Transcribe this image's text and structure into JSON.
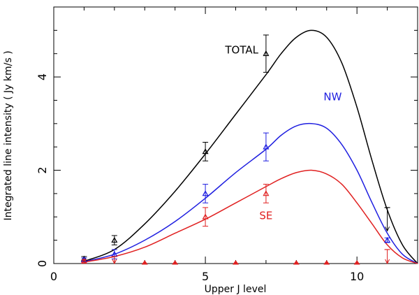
{
  "chart_data": {
    "type": "line",
    "title": "",
    "xlabel": "Upper J level",
    "ylabel": "Integrated line intensity ( Jy km/s )",
    "xlim": [
      0,
      12
    ],
    "ylim": [
      0,
      5.5
    ],
    "x_ticks": [
      0,
      5,
      10
    ],
    "y_ticks": [
      0,
      2,
      4
    ],
    "x_tick_labels": [
      "0",
      "5",
      "10"
    ],
    "y_tick_labels": [
      "0",
      "2",
      "4"
    ],
    "grid": false,
    "series": [
      {
        "name": "TOTAL",
        "color": "#000000",
        "curve": {
          "x": [
            1,
            2,
            3,
            4,
            5,
            6,
            7,
            7.5,
            8,
            8.5,
            9,
            9.5,
            10,
            10.5,
            11,
            11.5,
            12
          ],
          "y": [
            0.05,
            0.3,
            0.85,
            1.55,
            2.35,
            3.2,
            4.05,
            4.5,
            4.85,
            5.0,
            4.85,
            4.3,
            3.35,
            2.2,
            1.15,
            0.4,
            0.0
          ]
        },
        "points": [
          {
            "x": 1,
            "y": 0.1,
            "err": 0.05
          },
          {
            "x": 2,
            "y": 0.5,
            "err": 0.1
          },
          {
            "x": 5,
            "y": 2.4,
            "err": 0.2
          },
          {
            "x": 7,
            "y": 4.5,
            "err": 0.4
          }
        ],
        "upper_limits": [
          {
            "x": 11,
            "y": 1.2,
            "to": 0.7
          }
        ]
      },
      {
        "name": "NW",
        "color": "#1f1fe0",
        "curve": {
          "x": [
            1,
            2,
            3,
            4,
            5,
            6,
            7,
            7.5,
            8,
            8.5,
            9,
            9.5,
            10,
            10.5,
            11,
            11.5,
            12
          ],
          "y": [
            0.04,
            0.2,
            0.5,
            0.9,
            1.4,
            1.95,
            2.45,
            2.75,
            2.95,
            3.0,
            2.9,
            2.55,
            2.0,
            1.3,
            0.65,
            0.2,
            0.0
          ]
        },
        "points": [
          {
            "x": 1,
            "y": 0.08,
            "err": 0.04
          },
          {
            "x": 2,
            "y": 0.2,
            "err": 0.1
          },
          {
            "x": 5,
            "y": 1.5,
            "err": 0.2
          },
          {
            "x": 7,
            "y": 2.5,
            "err": 0.3
          },
          {
            "x": 11,
            "y": 0.5,
            "err": 0.05
          }
        ],
        "upper_limits": []
      },
      {
        "name": "SE",
        "color": "#e02020",
        "curve": {
          "x": [
            1,
            2,
            3,
            4,
            5,
            6,
            7,
            7.5,
            8,
            8.5,
            9,
            9.5,
            10,
            10.5,
            11,
            11.5,
            12
          ],
          "y": [
            0.03,
            0.15,
            0.35,
            0.65,
            0.95,
            1.3,
            1.65,
            1.82,
            1.95,
            2.0,
            1.92,
            1.7,
            1.3,
            0.85,
            0.4,
            0.12,
            0.0
          ]
        },
        "points": [
          {
            "x": 1,
            "y": 0.05,
            "err": 0.03
          },
          {
            "x": 5,
            "y": 1.0,
            "err": 0.2
          },
          {
            "x": 7,
            "y": 1.5,
            "err": 0.2
          }
        ],
        "upper_limits": [
          {
            "x": 2,
            "y": 0.15,
            "to": 0.0
          },
          {
            "x": 11,
            "y": 0.3,
            "to": 0.0
          }
        ],
        "nondetections_x": [
          3,
          4,
          6,
          8,
          9,
          10
        ]
      }
    ],
    "annotations": [
      {
        "text": "TOTAL",
        "color": "#000000",
        "x": 6.2,
        "y": 4.5
      },
      {
        "text": "NW",
        "color": "#1f1fe0",
        "x": 9.2,
        "y": 3.5
      },
      {
        "text": "SE",
        "color": "#e02020",
        "x": 7.0,
        "y": 0.95
      }
    ]
  }
}
